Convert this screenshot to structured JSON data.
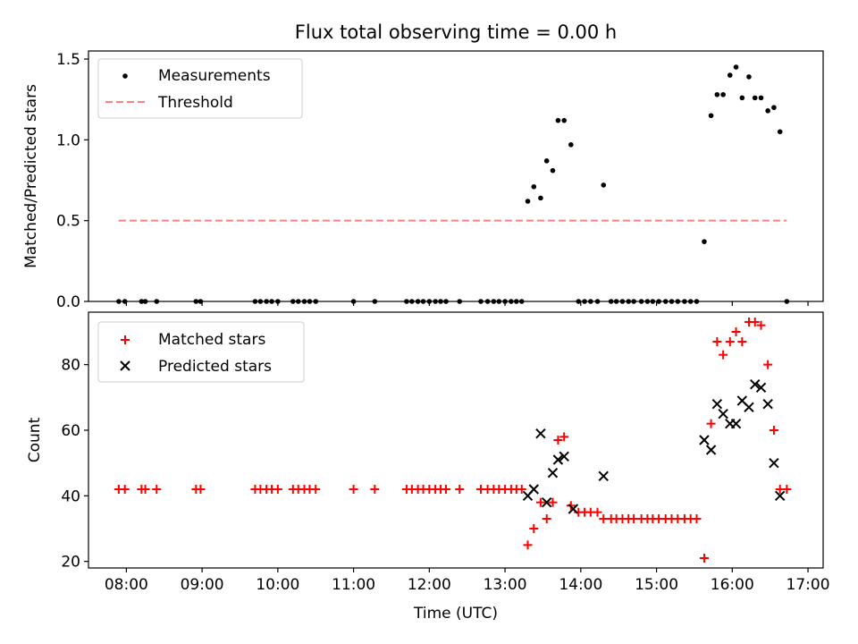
{
  "chart_data": [
    {
      "type": "scatter",
      "title": "Flux total observing time = 0.00 h",
      "xlabel": "",
      "ylabel": "Matched/Predicted stars",
      "xlim": [
        7.5,
        17.2
      ],
      "ylim": [
        0,
        1.55
      ],
      "yticks": [
        0.0,
        0.5,
        1.0,
        1.5
      ],
      "ytick_labels": [
        "0.0",
        "0.5",
        "1.0",
        "1.5"
      ],
      "legend": {
        "placement": "top-left",
        "entries": [
          "Measurements",
          "Threshold"
        ]
      },
      "series": [
        {
          "name": "Measurements",
          "color": "#000000",
          "marker": "dot",
          "points": [
            [
              7.9,
              0
            ],
            [
              7.98,
              0
            ],
            [
              8.2,
              0
            ],
            [
              8.25,
              0
            ],
            [
              8.4,
              0
            ],
            [
              8.92,
              0
            ],
            [
              8.98,
              0
            ],
            [
              9.7,
              0
            ],
            [
              9.77,
              0
            ],
            [
              9.85,
              0
            ],
            [
              9.92,
              0
            ],
            [
              10.0,
              0
            ],
            [
              10.2,
              0
            ],
            [
              10.27,
              0
            ],
            [
              10.35,
              0
            ],
            [
              10.42,
              0
            ],
            [
              10.5,
              0
            ],
            [
              11.0,
              0
            ],
            [
              11.28,
              0
            ],
            [
              11.7,
              0
            ],
            [
              11.77,
              0
            ],
            [
              11.85,
              0
            ],
            [
              11.92,
              0
            ],
            [
              12.0,
              0
            ],
            [
              12.08,
              0
            ],
            [
              12.15,
              0
            ],
            [
              12.22,
              0
            ],
            [
              12.4,
              0
            ],
            [
              12.68,
              0
            ],
            [
              12.77,
              0
            ],
            [
              12.85,
              0
            ],
            [
              12.92,
              0
            ],
            [
              13.0,
              0
            ],
            [
              13.08,
              0
            ],
            [
              13.15,
              0
            ],
            [
              13.22,
              0
            ],
            [
              13.3,
              0.62
            ],
            [
              13.38,
              0.71
            ],
            [
              13.47,
              0.64
            ],
            [
              13.55,
              0.87
            ],
            [
              13.63,
              0.81
            ],
            [
              13.7,
              1.12
            ],
            [
              13.78,
              1.12
            ],
            [
              13.87,
              0.97
            ],
            [
              13.97,
              0
            ],
            [
              14.05,
              0
            ],
            [
              14.13,
              0
            ],
            [
              14.22,
              0
            ],
            [
              14.3,
              0.72
            ],
            [
              14.4,
              0
            ],
            [
              14.47,
              0
            ],
            [
              14.55,
              0
            ],
            [
              14.63,
              0
            ],
            [
              14.7,
              0
            ],
            [
              14.8,
              0
            ],
            [
              14.88,
              0
            ],
            [
              14.95,
              0
            ],
            [
              15.03,
              0
            ],
            [
              15.12,
              0
            ],
            [
              15.2,
              0
            ],
            [
              15.28,
              0
            ],
            [
              15.37,
              0
            ],
            [
              15.45,
              0
            ],
            [
              15.53,
              0
            ],
            [
              15.63,
              0.37
            ],
            [
              15.72,
              1.15
            ],
            [
              15.8,
              1.28
            ],
            [
              15.88,
              1.28
            ],
            [
              15.97,
              1.4
            ],
            [
              16.05,
              1.45
            ],
            [
              16.13,
              1.26
            ],
            [
              16.22,
              1.39
            ],
            [
              16.3,
              1.26
            ],
            [
              16.38,
              1.26
            ],
            [
              16.47,
              1.18
            ],
            [
              16.55,
              1.2
            ],
            [
              16.63,
              1.05
            ],
            [
              16.72,
              0
            ]
          ]
        },
        {
          "name": "Threshold",
          "color": "#ff7f7f",
          "style": "dashed",
          "points": [
            [
              7.9,
              0.5
            ],
            [
              16.72,
              0.5
            ]
          ]
        }
      ]
    },
    {
      "type": "scatter",
      "title": "",
      "xlabel": "Time (UTC)",
      "ylabel": "Count",
      "xlim": [
        7.5,
        17.2
      ],
      "ylim": [
        18,
        96
      ],
      "yticks": [
        20,
        40,
        60,
        80
      ],
      "ytick_labels": [
        "20",
        "40",
        "60",
        "80"
      ],
      "xticks": [
        8,
        9,
        10,
        11,
        12,
        13,
        14,
        15,
        16,
        17
      ],
      "xtick_labels": [
        "08:00",
        "09:00",
        "10:00",
        "11:00",
        "12:00",
        "13:00",
        "14:00",
        "15:00",
        "16:00",
        "17:00"
      ],
      "legend": {
        "placement": "top-left",
        "entries": [
          "Matched stars",
          "Predicted stars"
        ]
      },
      "series": [
        {
          "name": "Matched stars",
          "color": "#ff0000",
          "marker": "plus",
          "points": [
            [
              7.9,
              42
            ],
            [
              7.98,
              42
            ],
            [
              8.2,
              42
            ],
            [
              8.25,
              42
            ],
            [
              8.4,
              42
            ],
            [
              8.92,
              42
            ],
            [
              8.98,
              42
            ],
            [
              9.7,
              42
            ],
            [
              9.77,
              42
            ],
            [
              9.85,
              42
            ],
            [
              9.92,
              42
            ],
            [
              10.0,
              42
            ],
            [
              10.2,
              42
            ],
            [
              10.27,
              42
            ],
            [
              10.35,
              42
            ],
            [
              10.42,
              42
            ],
            [
              10.5,
              42
            ],
            [
              11.0,
              42
            ],
            [
              11.28,
              42
            ],
            [
              11.7,
              42
            ],
            [
              11.77,
              42
            ],
            [
              11.85,
              42
            ],
            [
              11.92,
              42
            ],
            [
              12.0,
              42
            ],
            [
              12.08,
              42
            ],
            [
              12.15,
              42
            ],
            [
              12.22,
              42
            ],
            [
              12.4,
              42
            ],
            [
              12.68,
              42
            ],
            [
              12.77,
              42
            ],
            [
              12.85,
              42
            ],
            [
              12.92,
              42
            ],
            [
              13.0,
              42
            ],
            [
              13.08,
              42
            ],
            [
              13.15,
              42
            ],
            [
              13.22,
              42
            ],
            [
              13.3,
              25
            ],
            [
              13.38,
              30
            ],
            [
              13.47,
              38
            ],
            [
              13.55,
              33
            ],
            [
              13.63,
              38
            ],
            [
              13.7,
              57
            ],
            [
              13.78,
              58
            ],
            [
              13.87,
              37
            ],
            [
              13.97,
              35
            ],
            [
              14.05,
              35
            ],
            [
              14.13,
              35
            ],
            [
              14.22,
              35
            ],
            [
              14.3,
              33
            ],
            [
              14.4,
              33
            ],
            [
              14.47,
              33
            ],
            [
              14.55,
              33
            ],
            [
              14.63,
              33
            ],
            [
              14.7,
              33
            ],
            [
              14.8,
              33
            ],
            [
              14.88,
              33
            ],
            [
              14.95,
              33
            ],
            [
              15.03,
              33
            ],
            [
              15.12,
              33
            ],
            [
              15.2,
              33
            ],
            [
              15.28,
              33
            ],
            [
              15.37,
              33
            ],
            [
              15.45,
              33
            ],
            [
              15.53,
              33
            ],
            [
              15.63,
              21
            ],
            [
              15.72,
              62
            ],
            [
              15.8,
              87
            ],
            [
              15.88,
              83
            ],
            [
              15.97,
              87
            ],
            [
              16.05,
              90
            ],
            [
              16.13,
              87
            ],
            [
              16.22,
              93
            ],
            [
              16.3,
              93
            ],
            [
              16.38,
              92
            ],
            [
              16.47,
              80
            ],
            [
              16.55,
              60
            ],
            [
              16.63,
              42
            ],
            [
              16.72,
              42
            ]
          ]
        },
        {
          "name": "Predicted stars",
          "color": "#000000",
          "marker": "x",
          "points": [
            [
              13.3,
              40
            ],
            [
              13.38,
              42
            ],
            [
              13.47,
              59
            ],
            [
              13.55,
              38
            ],
            [
              13.63,
              47
            ],
            [
              13.7,
              51
            ],
            [
              13.78,
              52
            ],
            [
              13.9,
              36
            ],
            [
              14.3,
              46
            ],
            [
              15.63,
              57
            ],
            [
              15.72,
              54
            ],
            [
              15.8,
              68
            ],
            [
              15.88,
              65
            ],
            [
              15.97,
              62
            ],
            [
              16.05,
              62
            ],
            [
              16.13,
              69
            ],
            [
              16.22,
              67
            ],
            [
              16.3,
              74
            ],
            [
              16.38,
              73
            ],
            [
              16.47,
              68
            ],
            [
              16.55,
              50
            ],
            [
              16.63,
              40
            ]
          ]
        }
      ]
    }
  ]
}
